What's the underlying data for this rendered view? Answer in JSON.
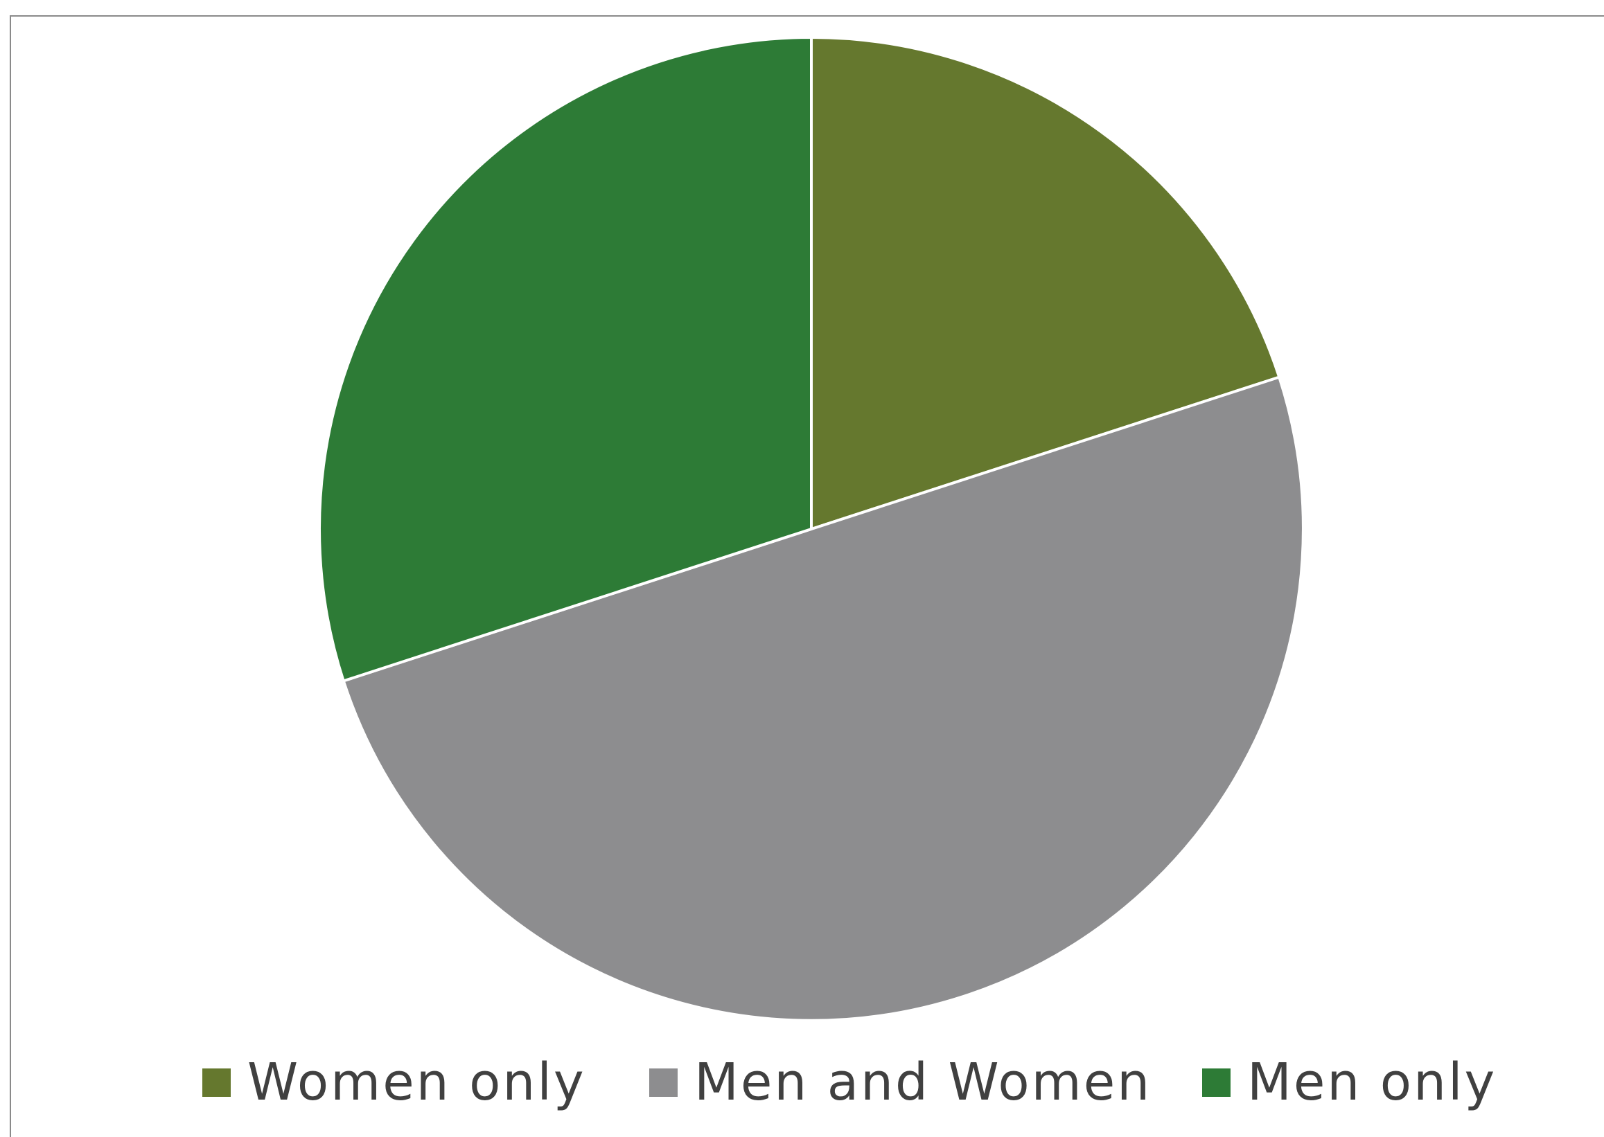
{
  "chart_data": {
    "type": "pie",
    "categories": [
      "Women only",
      "Men and Women",
      "Men only"
    ],
    "values": [
      20,
      50,
      30
    ],
    "colors": [
      "#65782e",
      "#8d8d8f",
      "#2d7b36"
    ],
    "start_angle_deg": 0,
    "direction": "clockwise",
    "legend": "bottom"
  },
  "legend": {
    "items": [
      {
        "label": "Women only",
        "color": "#65782e"
      },
      {
        "label": "Men and Women",
        "color": "#8d8d8f"
      },
      {
        "label": "Men only",
        "color": "#2d7b36"
      }
    ]
  }
}
